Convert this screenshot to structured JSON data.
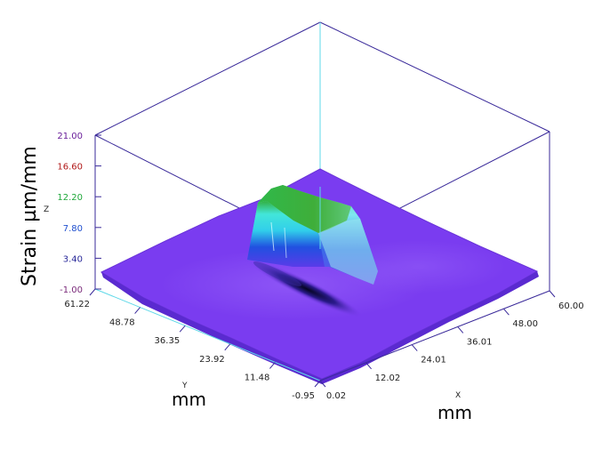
{
  "chart_data": {
    "type": "surface",
    "title": "",
    "z_axis": {
      "title": "Strain µm/mm",
      "name": "Z",
      "ticks": [
        {
          "label": "-1.00",
          "color": "#7a2a7a"
        },
        {
          "label": "3.40",
          "color": "#2a2a9a"
        },
        {
          "label": "7.80",
          "color": "#1f4fcf"
        },
        {
          "label": "12.20",
          "color": "#1fa83a"
        },
        {
          "label": "16.60",
          "color": "#b01818"
        },
        {
          "label": "21.00",
          "color": "#6a1f9a"
        }
      ],
      "range": [
        -1.0,
        21.0
      ]
    },
    "y_axis": {
      "title": "mm",
      "name": "Y",
      "ticks": [
        "61.22",
        "48.78",
        "36.35",
        "23.92",
        "11.48",
        "-0.95"
      ],
      "range": [
        -0.95,
        61.22
      ]
    },
    "x_axis": {
      "title": "mm",
      "name": "X",
      "ticks": [
        "0.02",
        "12.02",
        "24.01",
        "36.01",
        "48.00",
        "60.00"
      ],
      "range": [
        0.02,
        60.0
      ]
    },
    "colors": {
      "base": "#7a3cf0",
      "mid": "#1f5fe0",
      "high": "#2fe8e8",
      "peak": "#2fae3a",
      "frame": "#3a2a9a",
      "wall_line": "#5fd8e8"
    }
  }
}
